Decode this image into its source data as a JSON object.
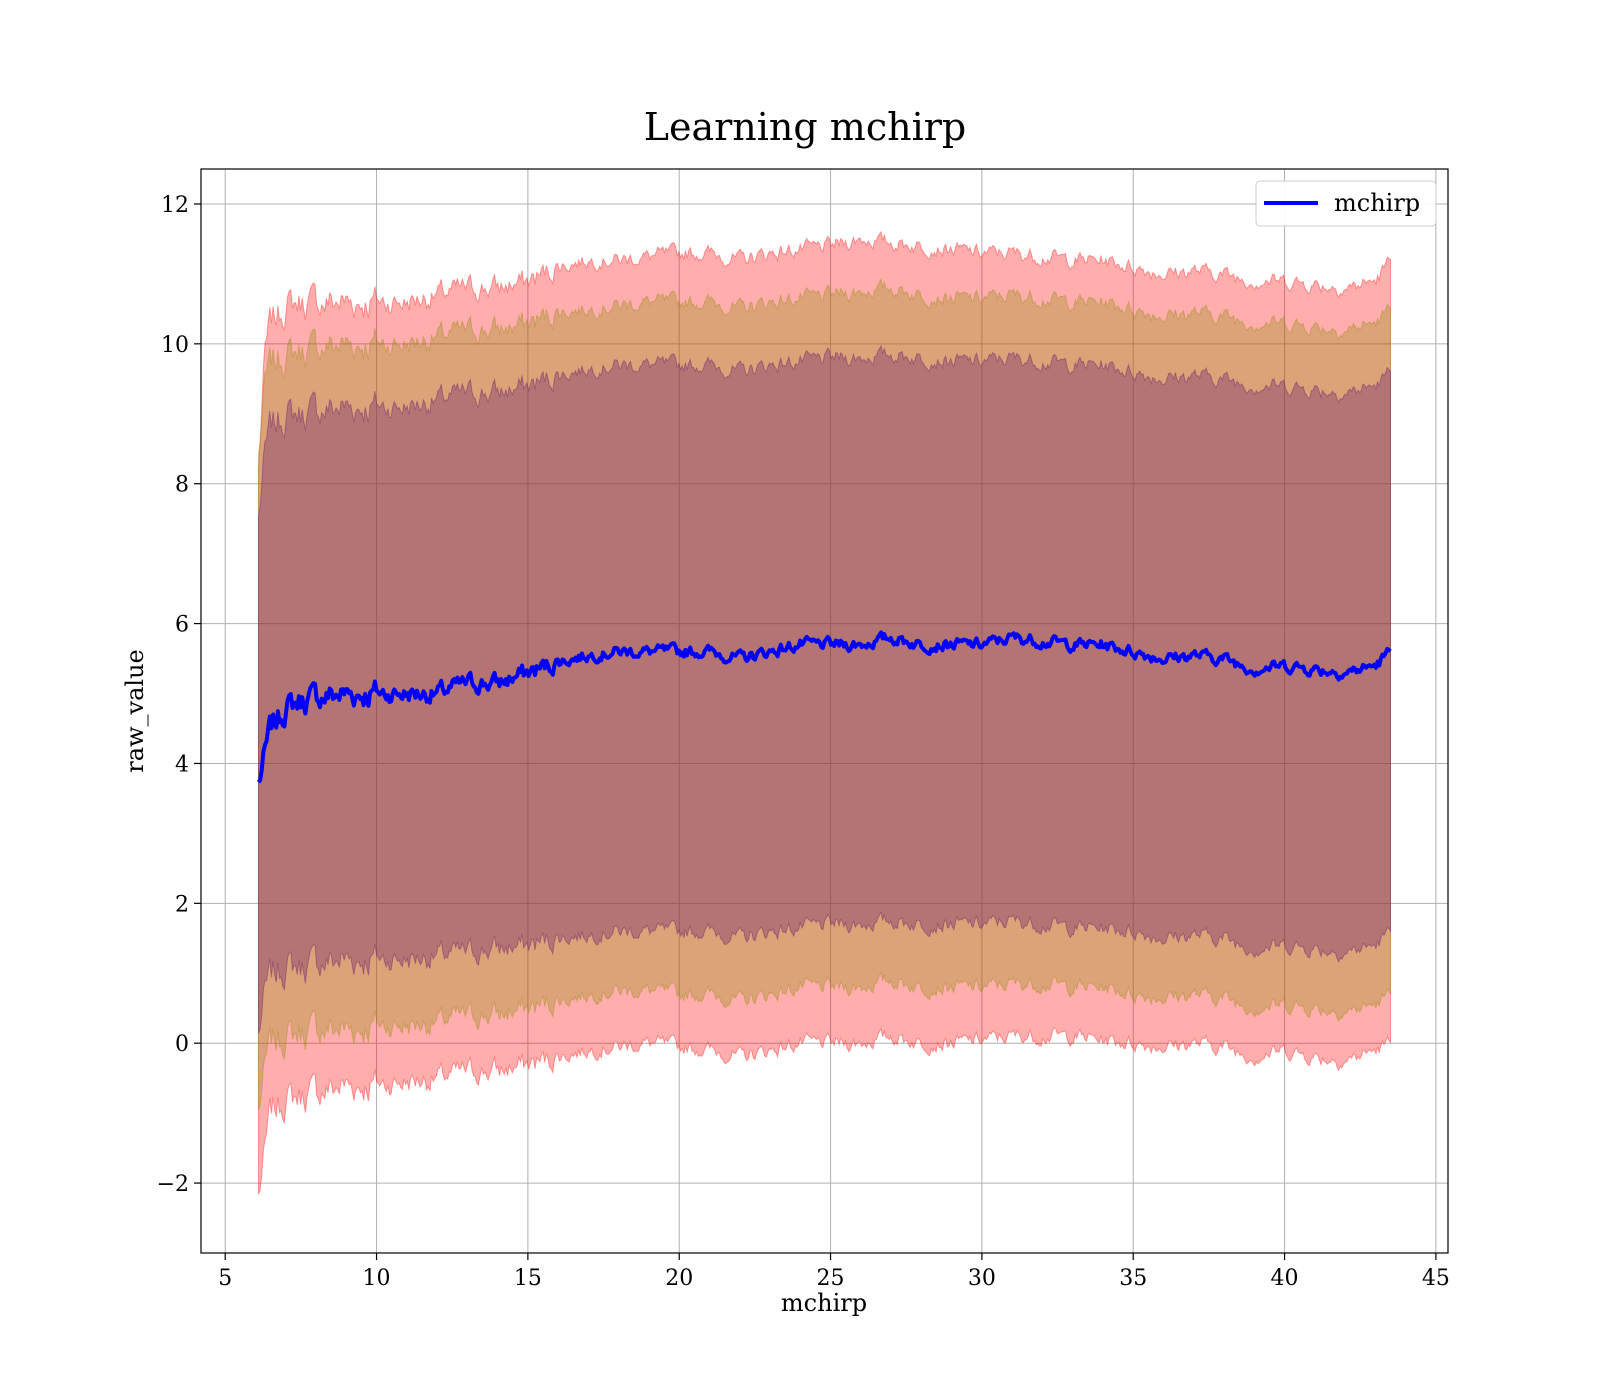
{
  "chart_data": {
    "type": "line",
    "title": "Learning mchirp",
    "xlabel": "mchirp",
    "ylabel": "raw_value",
    "xlim": [
      4.2,
      45.4
    ],
    "ylim": [
      -3.0,
      12.5
    ],
    "xticks": [
      5,
      10,
      15,
      20,
      25,
      30,
      35,
      40,
      45
    ],
    "yticks": [
      -2,
      0,
      2,
      4,
      6,
      8,
      10,
      12
    ],
    "xtick_labels": [
      "5",
      "10",
      "15",
      "20",
      "25",
      "30",
      "35",
      "40",
      "45"
    ],
    "ytick_labels": [
      "−2",
      "0",
      "2",
      "4",
      "6",
      "8",
      "10",
      "12"
    ],
    "grid": true,
    "legend": {
      "position": "top-right",
      "entries": [
        "mchirp"
      ]
    },
    "x_range": [
      6.1,
      43.5
    ],
    "series": [
      {
        "name": "mchirp",
        "color": "#0000ff",
        "x": [
          6.1,
          6.3,
          6.5,
          7,
          7.5,
          8,
          9,
          10,
          11,
          12,
          13,
          14,
          15,
          16,
          17,
          18,
          19,
          20,
          21,
          22,
          23,
          24,
          25,
          26,
          27,
          28,
          29,
          30,
          31,
          32,
          33,
          34,
          35,
          36,
          37,
          38,
          39,
          40,
          41,
          42,
          43,
          43.5
        ],
        "y": [
          3.7,
          4.1,
          4.5,
          4.8,
          4.9,
          4.95,
          5.0,
          5.0,
          5.0,
          5.0,
          5.15,
          5.15,
          5.3,
          5.45,
          5.55,
          5.6,
          5.6,
          5.6,
          5.6,
          5.5,
          5.6,
          5.7,
          5.7,
          5.7,
          5.8,
          5.7,
          5.7,
          5.7,
          5.8,
          5.75,
          5.7,
          5.7,
          5.6,
          5.5,
          5.55,
          5.5,
          5.35,
          5.4,
          5.35,
          5.3,
          5.4,
          5.6
        ]
      }
    ],
    "bands": [
      {
        "color": "#ff0000",
        "opacity": 0.32,
        "half_width_sigma": 3,
        "upper": [
          8.2,
          9.8,
          10.3,
          10.55,
          10.6,
          10.6,
          10.6,
          10.6,
          10.6,
          10.7,
          10.8,
          10.8,
          10.9,
          11.1,
          11.2,
          11.2,
          11.25,
          11.3,
          11.3,
          11.2,
          11.3,
          11.35,
          11.4,
          11.5,
          11.45,
          11.4,
          11.35,
          11.3,
          11.3,
          11.25,
          11.2,
          11.2,
          11.1,
          11.0,
          11.05,
          11.0,
          10.9,
          10.9,
          10.85,
          10.8,
          10.9,
          11.2
        ],
        "lower": [
          -2.2,
          -1.6,
          -1.0,
          -0.8,
          -0.75,
          -0.7,
          -0.6,
          -0.6,
          -0.55,
          -0.5,
          -0.4,
          -0.4,
          -0.3,
          -0.2,
          -0.1,
          -0.05,
          0.0,
          -0.05,
          -0.1,
          -0.2,
          -0.1,
          0.0,
          0.0,
          0.0,
          0.1,
          0.0,
          0.0,
          0.05,
          0.1,
          0.1,
          0.1,
          0.05,
          0.0,
          -0.05,
          0.0,
          -0.05,
          -0.2,
          -0.1,
          -0.2,
          -0.25,
          -0.1,
          0.0
        ]
      },
      {
        "color": "#8b8b00",
        "opacity": 0.3,
        "half_width_sigma": 2,
        "upper": [
          8.4,
          9.4,
          9.7,
          9.85,
          9.9,
          9.95,
          10.0,
          10.0,
          10.0,
          10.1,
          10.2,
          10.2,
          10.3,
          10.45,
          10.5,
          10.55,
          10.6,
          10.6,
          10.6,
          10.5,
          10.6,
          10.65,
          10.7,
          10.75,
          10.8,
          10.7,
          10.65,
          10.65,
          10.7,
          10.65,
          10.6,
          10.6,
          10.5,
          10.4,
          10.45,
          10.4,
          10.3,
          10.3,
          10.25,
          10.2,
          10.3,
          10.5
        ],
        "lower": [
          -1.0,
          -0.4,
          0.0,
          0.1,
          0.15,
          0.2,
          0.2,
          0.25,
          0.25,
          0.3,
          0.4,
          0.4,
          0.5,
          0.6,
          0.7,
          0.75,
          0.75,
          0.7,
          0.7,
          0.6,
          0.7,
          0.8,
          0.8,
          0.8,
          0.9,
          0.8,
          0.8,
          0.8,
          0.85,
          0.85,
          0.8,
          0.8,
          0.7,
          0.65,
          0.7,
          0.65,
          0.5,
          0.55,
          0.5,
          0.45,
          0.55,
          0.7
        ]
      },
      {
        "color": "#5b0a6e",
        "opacity": 0.3,
        "half_width_sigma": 1,
        "upper": [
          7.5,
          8.4,
          8.8,
          9.0,
          9.0,
          9.05,
          9.1,
          9.1,
          9.1,
          9.2,
          9.3,
          9.3,
          9.4,
          9.55,
          9.65,
          9.7,
          9.7,
          9.7,
          9.7,
          9.6,
          9.7,
          9.75,
          9.8,
          9.8,
          9.85,
          9.8,
          9.75,
          9.75,
          9.8,
          9.75,
          9.7,
          9.7,
          9.6,
          9.5,
          9.55,
          9.5,
          9.4,
          9.4,
          9.35,
          9.3,
          9.4,
          9.6
        ],
        "lower": [
          0.1,
          0.7,
          0.95,
          1.1,
          1.1,
          1.15,
          1.2,
          1.2,
          1.2,
          1.25,
          1.3,
          1.35,
          1.4,
          1.5,
          1.55,
          1.6,
          1.6,
          1.6,
          1.6,
          1.5,
          1.6,
          1.65,
          1.7,
          1.7,
          1.75,
          1.7,
          1.7,
          1.7,
          1.75,
          1.7,
          1.65,
          1.65,
          1.6,
          1.5,
          1.55,
          1.5,
          1.35,
          1.4,
          1.35,
          1.3,
          1.4,
          1.6
        ]
      }
    ]
  }
}
